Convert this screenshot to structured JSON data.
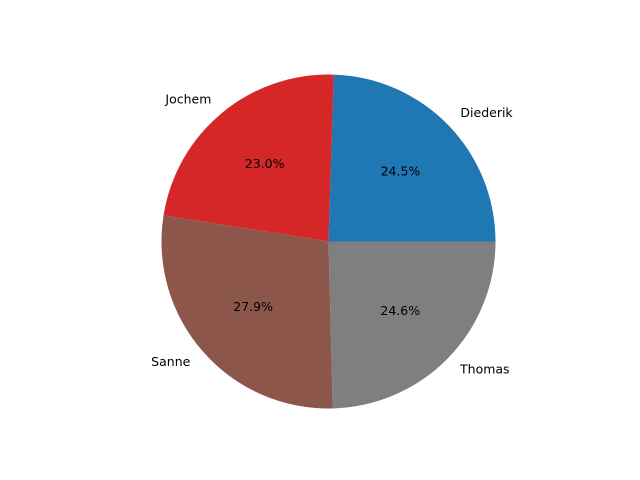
{
  "chart_data": {
    "type": "pie",
    "title": "",
    "categories": [
      "Diederik",
      "Jochem",
      "Sanne",
      "Thomas"
    ],
    "values": [
      24.5,
      23.0,
      27.9,
      24.6
    ],
    "value_labels": [
      "24.5%",
      "23.0%",
      "27.9%",
      "24.6%"
    ],
    "colors": [
      "#1f77b4",
      "#d62728",
      "#8c564b",
      "#7f7f7f"
    ],
    "start_angle_deg": 0,
    "direction": "counterclockwise",
    "legend": "none"
  }
}
